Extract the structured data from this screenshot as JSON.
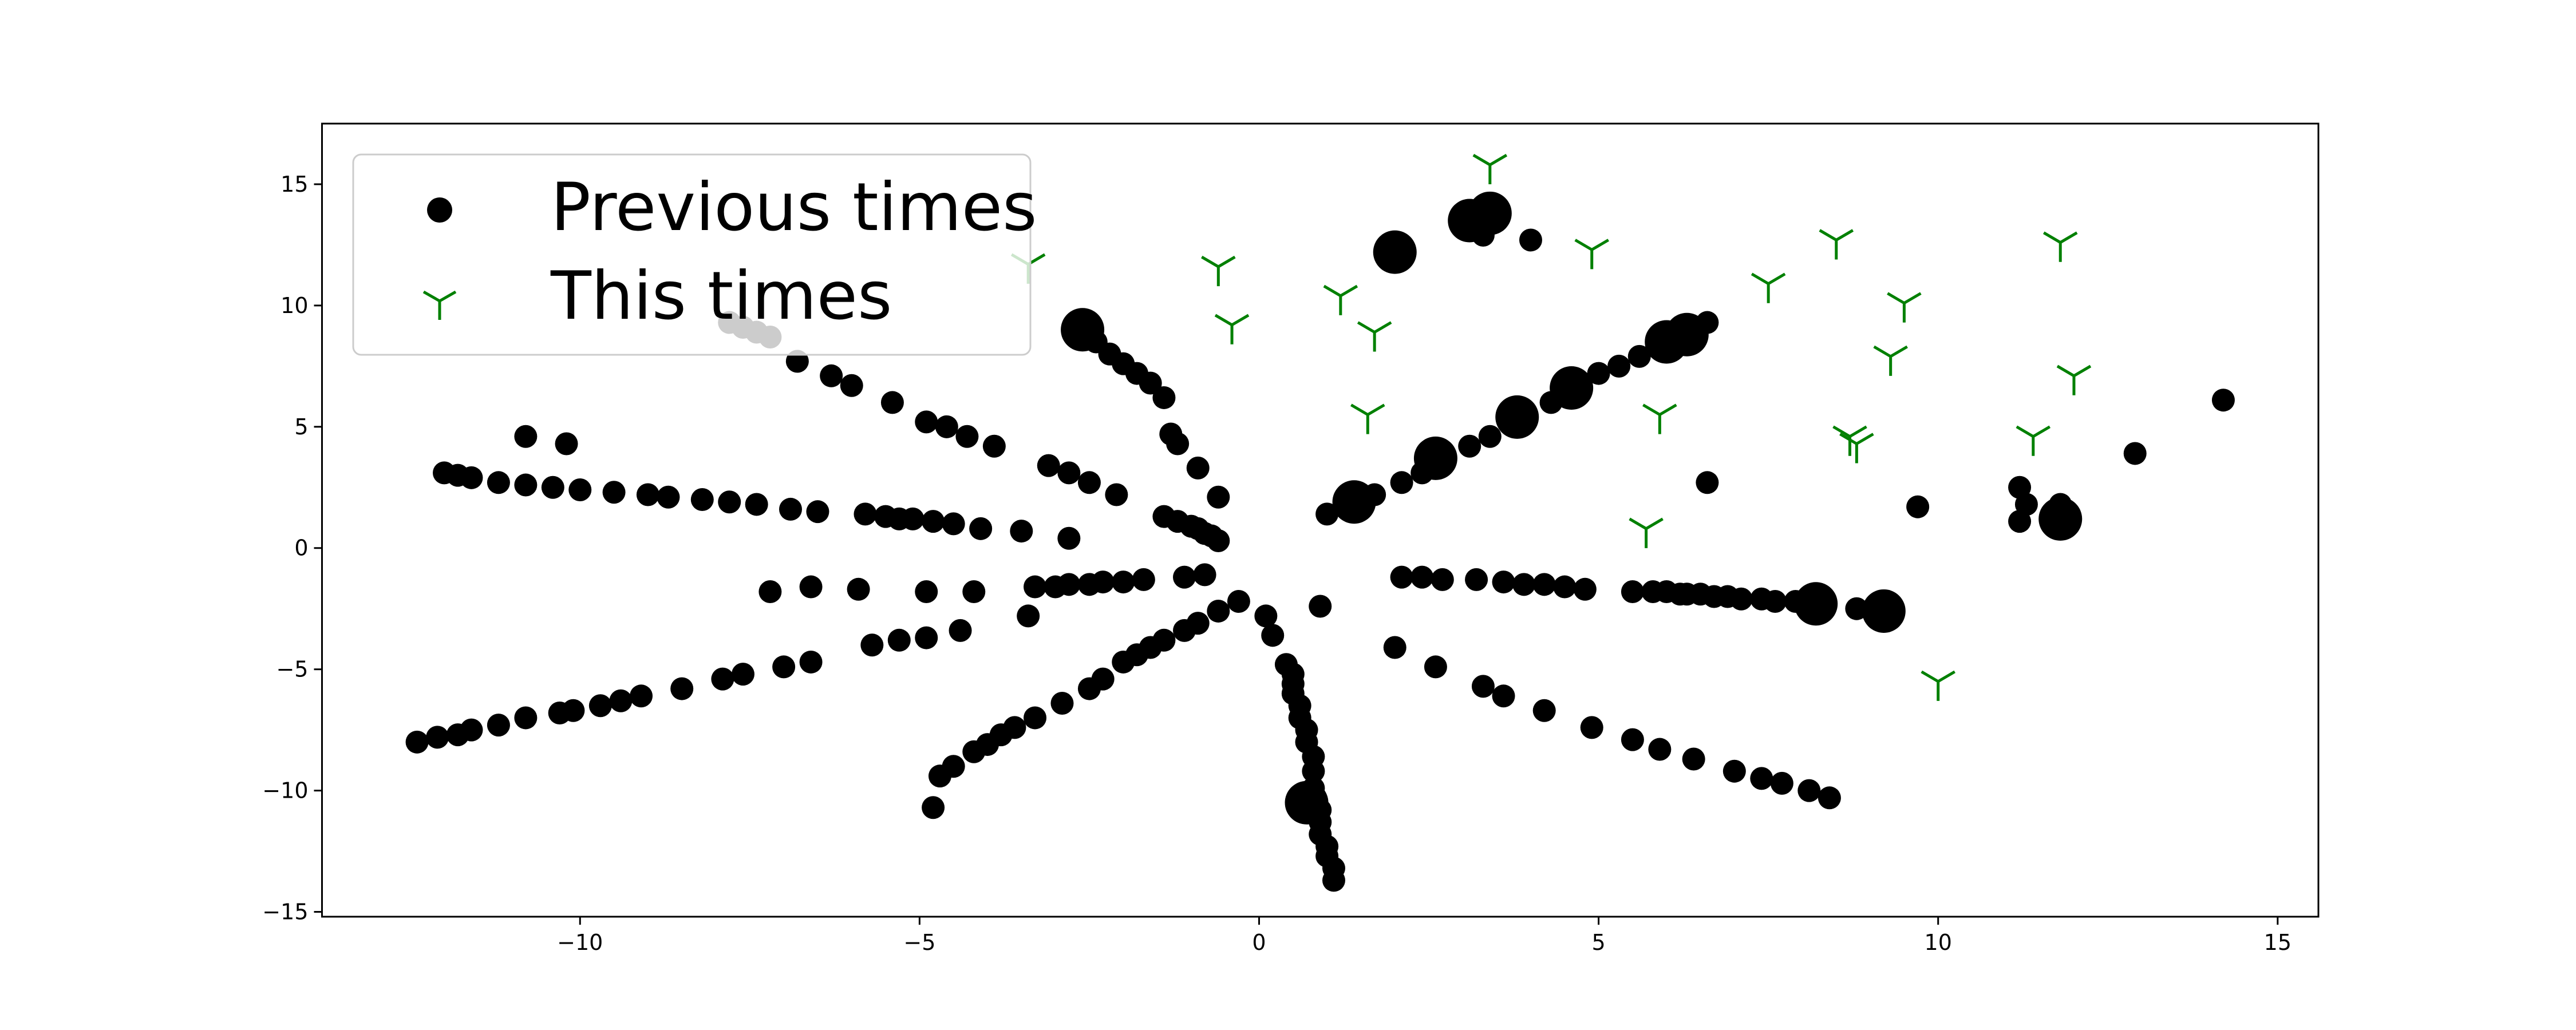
{
  "chart_data": {
    "type": "scatter",
    "xlim": [
      -13.8,
      15.6
    ],
    "ylim": [
      -15.2,
      17.5
    ],
    "xticks": [
      -10,
      -5,
      0,
      5,
      10,
      15
    ],
    "yticks": [
      -15,
      -10,
      -5,
      0,
      5,
      10,
      15
    ],
    "xtick_labels": [
      "−10",
      "−5",
      "0",
      "5",
      "10",
      "15"
    ],
    "ytick_labels": [
      "−15",
      "−10",
      "−5",
      "0",
      "5",
      "10",
      "15"
    ],
    "grid": false,
    "legend_position": "upper-left",
    "series": [
      {
        "name": "Previous times",
        "marker": "circle",
        "color": "#000000",
        "large_points": [
          [
            2.0,
            12.2
          ],
          [
            3.1,
            13.5
          ],
          [
            3.4,
            13.8
          ],
          [
            -2.6,
            9.0
          ],
          [
            1.4,
            1.9
          ],
          [
            2.6,
            3.7
          ],
          [
            3.8,
            5.4
          ],
          [
            4.6,
            6.6
          ],
          [
            6.0,
            8.5
          ],
          [
            6.3,
            8.8
          ],
          [
            8.2,
            -2.3
          ],
          [
            9.2,
            -2.6
          ],
          [
            0.7,
            -10.5
          ],
          [
            11.8,
            1.2
          ]
        ],
        "points": [
          [
            -12.4,
            -8.0
          ],
          [
            -12.1,
            -7.8
          ],
          [
            -11.8,
            -7.7
          ],
          [
            -11.6,
            -7.5
          ],
          [
            -11.2,
            -7.3
          ],
          [
            -10.8,
            -7.0
          ],
          [
            -10.3,
            -6.8
          ],
          [
            -10.1,
            -6.7
          ],
          [
            -9.7,
            -6.5
          ],
          [
            -9.4,
            -6.3
          ],
          [
            -9.1,
            -6.1
          ],
          [
            -8.5,
            -5.8
          ],
          [
            -7.9,
            -5.4
          ],
          [
            -7.6,
            -5.2
          ],
          [
            -7.0,
            -4.9
          ],
          [
            -6.6,
            -4.7
          ],
          [
            -12.0,
            3.1
          ],
          [
            -11.8,
            3.0
          ],
          [
            -11.6,
            2.9
          ],
          [
            -11.2,
            2.7
          ],
          [
            -10.8,
            2.6
          ],
          [
            -10.4,
            2.5
          ],
          [
            -10.0,
            2.4
          ],
          [
            -9.5,
            2.3
          ],
          [
            -9.0,
            2.2
          ],
          [
            -8.7,
            2.1
          ],
          [
            -8.2,
            2.0
          ],
          [
            -7.8,
            1.9
          ],
          [
            -7.4,
            1.8
          ],
          [
            -6.9,
            1.6
          ],
          [
            -6.5,
            1.5
          ],
          [
            -5.8,
            1.4
          ],
          [
            -5.5,
            1.3
          ],
          [
            -5.3,
            1.2
          ],
          [
            -5.1,
            1.2
          ],
          [
            -4.8,
            1.1
          ],
          [
            -4.5,
            1.0
          ],
          [
            -4.1,
            0.8
          ],
          [
            -3.5,
            0.7
          ],
          [
            -2.8,
            0.4
          ],
          [
            -10.8,
            4.6
          ],
          [
            -10.2,
            4.3
          ],
          [
            -7.2,
            -1.8
          ],
          [
            -6.6,
            -1.6
          ],
          [
            -5.9,
            -1.7
          ],
          [
            -4.9,
            -1.8
          ],
          [
            -4.2,
            -1.8
          ],
          [
            -3.3,
            -1.6
          ],
          [
            -3.0,
            -1.6
          ],
          [
            -2.8,
            -1.5
          ],
          [
            -2.5,
            -1.5
          ],
          [
            -2.3,
            -1.4
          ],
          [
            -2.0,
            -1.4
          ],
          [
            -1.7,
            -1.3
          ],
          [
            -1.1,
            -1.2
          ],
          [
            -0.8,
            -1.1
          ],
          [
            -5.7,
            -4.0
          ],
          [
            -5.3,
            -3.8
          ],
          [
            -4.9,
            -3.7
          ],
          [
            -4.4,
            -3.4
          ],
          [
            -3.4,
            -2.8
          ],
          [
            -4.8,
            -10.7
          ],
          [
            -4.7,
            -9.4
          ],
          [
            -4.5,
            -9.0
          ],
          [
            -4.2,
            -8.4
          ],
          [
            -4.0,
            -8.1
          ],
          [
            -3.8,
            -7.7
          ],
          [
            -3.6,
            -7.4
          ],
          [
            -3.3,
            -7.0
          ],
          [
            -2.9,
            -6.4
          ],
          [
            -2.5,
            -5.8
          ],
          [
            -2.3,
            -5.4
          ],
          [
            -2.0,
            -4.7
          ],
          [
            -1.8,
            -4.4
          ],
          [
            -1.6,
            -4.1
          ],
          [
            -1.4,
            -3.8
          ],
          [
            -1.1,
            -3.4
          ],
          [
            -0.9,
            -3.1
          ],
          [
            -0.6,
            -2.6
          ],
          [
            -0.3,
            -2.2
          ],
          [
            -7.8,
            9.3
          ],
          [
            -7.6,
            9.1
          ],
          [
            -7.4,
            8.9
          ],
          [
            -7.2,
            8.7
          ],
          [
            -6.8,
            7.7
          ],
          [
            -6.3,
            7.1
          ],
          [
            -6.0,
            6.7
          ],
          [
            -5.4,
            6.0
          ],
          [
            -4.9,
            5.2
          ],
          [
            -4.6,
            5.0
          ],
          [
            -4.3,
            4.6
          ],
          [
            -3.9,
            4.2
          ],
          [
            -3.1,
            3.4
          ],
          [
            -2.8,
            3.1
          ],
          [
            -2.5,
            2.7
          ],
          [
            -2.1,
            2.2
          ],
          [
            -2.4,
            8.5
          ],
          [
            -2.2,
            8.0
          ],
          [
            -2.0,
            7.6
          ],
          [
            -1.8,
            7.2
          ],
          [
            -1.6,
            6.8
          ],
          [
            -1.4,
            6.2
          ],
          [
            -1.3,
            4.7
          ],
          [
            -1.2,
            4.3
          ],
          [
            -0.9,
            3.3
          ],
          [
            -0.6,
            2.1
          ],
          [
            -1.4,
            1.3
          ],
          [
            -1.2,
            1.1
          ],
          [
            -1.0,
            0.9
          ],
          [
            -0.9,
            0.8
          ],
          [
            -0.8,
            0.6
          ],
          [
            -0.7,
            0.5
          ],
          [
            -0.6,
            0.3
          ],
          [
            0.1,
            -2.8
          ],
          [
            0.2,
            -3.6
          ],
          [
            0.4,
            -4.8
          ],
          [
            0.5,
            -5.2
          ],
          [
            0.5,
            -5.6
          ],
          [
            0.5,
            -6.0
          ],
          [
            0.6,
            -6.5
          ],
          [
            0.6,
            -7.0
          ],
          [
            0.7,
            -7.5
          ],
          [
            0.7,
            -8.0
          ],
          [
            0.8,
            -8.6
          ],
          [
            0.8,
            -9.2
          ],
          [
            0.8,
            -9.9
          ],
          [
            0.9,
            -10.8
          ],
          [
            0.9,
            -11.3
          ],
          [
            0.9,
            -11.8
          ],
          [
            1.0,
            -12.3
          ],
          [
            1.0,
            -12.7
          ],
          [
            1.1,
            -13.2
          ],
          [
            1.1,
            -13.7
          ],
          [
            0.9,
            -2.4
          ],
          [
            1.0,
            1.4
          ],
          [
            1.7,
            2.2
          ],
          [
            2.1,
            2.7
          ],
          [
            2.4,
            3.1
          ],
          [
            3.1,
            4.2
          ],
          [
            3.4,
            4.6
          ],
          [
            4.3,
            6.0
          ],
          [
            5.0,
            7.2
          ],
          [
            5.3,
            7.5
          ],
          [
            5.6,
            7.9
          ],
          [
            6.6,
            9.3
          ],
          [
            3.3,
            12.9
          ],
          [
            4.0,
            12.7
          ],
          [
            6.6,
            2.7
          ],
          [
            2.1,
            -1.2
          ],
          [
            2.4,
            -1.2
          ],
          [
            2.7,
            -1.3
          ],
          [
            3.2,
            -1.3
          ],
          [
            3.6,
            -1.4
          ],
          [
            3.9,
            -1.5
          ],
          [
            4.2,
            -1.5
          ],
          [
            4.5,
            -1.6
          ],
          [
            4.8,
            -1.7
          ],
          [
            5.5,
            -1.8
          ],
          [
            5.8,
            -1.8
          ],
          [
            6.0,
            -1.8
          ],
          [
            6.2,
            -1.9
          ],
          [
            6.3,
            -1.9
          ],
          [
            6.5,
            -1.9
          ],
          [
            6.7,
            -2.0
          ],
          [
            6.9,
            -2.0
          ],
          [
            7.1,
            -2.1
          ],
          [
            7.4,
            -2.1
          ],
          [
            7.6,
            -2.2
          ],
          [
            7.9,
            -2.2
          ],
          [
            8.8,
            -2.5
          ],
          [
            2.0,
            -4.1
          ],
          [
            2.6,
            -4.9
          ],
          [
            3.3,
            -5.7
          ],
          [
            3.6,
            -6.1
          ],
          [
            4.2,
            -6.7
          ],
          [
            4.9,
            -7.4
          ],
          [
            5.5,
            -7.9
          ],
          [
            5.9,
            -8.3
          ],
          [
            6.4,
            -8.7
          ],
          [
            7.0,
            -9.2
          ],
          [
            7.4,
            -9.5
          ],
          [
            7.7,
            -9.7
          ],
          [
            8.1,
            -10.0
          ],
          [
            8.4,
            -10.3
          ],
          [
            9.7,
            1.7
          ],
          [
            11.2,
            2.5
          ],
          [
            11.3,
            1.8
          ],
          [
            11.2,
            1.1
          ],
          [
            11.8,
            1.8
          ],
          [
            12.9,
            3.9
          ],
          [
            14.2,
            6.1
          ]
        ]
      },
      {
        "name": "This times",
        "marker": "tri_down",
        "color": "#008000",
        "points": [
          [
            3.4,
            15.8
          ],
          [
            -3.4,
            11.7
          ],
          [
            -0.6,
            11.6
          ],
          [
            -0.4,
            9.2
          ],
          [
            1.2,
            10.4
          ],
          [
            1.7,
            8.9
          ],
          [
            1.6,
            5.5
          ],
          [
            4.9,
            12.3
          ],
          [
            5.9,
            5.5
          ],
          [
            5.7,
            0.8
          ],
          [
            7.5,
            10.9
          ],
          [
            8.5,
            12.7
          ],
          [
            8.7,
            4.6
          ],
          [
            8.8,
            4.3
          ],
          [
            9.5,
            10.1
          ],
          [
            9.3,
            7.9
          ],
          [
            11.4,
            4.6
          ],
          [
            11.8,
            12.6
          ],
          [
            12.0,
            7.1
          ],
          [
            10.0,
            -5.5
          ]
        ]
      }
    ]
  }
}
